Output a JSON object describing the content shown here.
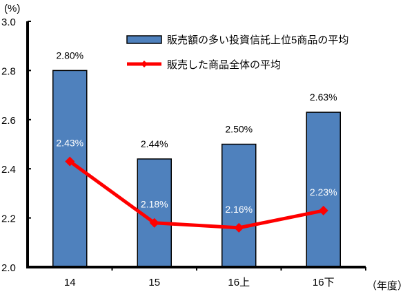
{
  "chart_data": {
    "type": "bar+line",
    "title": "",
    "unit_label": "(%)",
    "xlabel": "（年度）",
    "ylabel": "(%)",
    "categories": [
      "14",
      "15",
      "16上",
      "16下"
    ],
    "ylim": [
      2.0,
      3.0
    ],
    "yticks": [
      "2.0",
      "2.2",
      "2.4",
      "2.6",
      "2.8",
      "3.0"
    ],
    "grid": false,
    "legend_position": "top-right",
    "series": [
      {
        "name": "販売額の多い投資信託上位5商品の平均",
        "type": "bar",
        "color": "#4F81BD",
        "values": [
          2.8,
          2.44,
          2.5,
          2.63
        ],
        "labels": [
          "2.80%",
          "2.44%",
          "2.50%",
          "2.63%"
        ]
      },
      {
        "name": "販売した商品全体の平均",
        "type": "line",
        "color": "#FF0000",
        "marker": "diamond",
        "values": [
          2.43,
          2.18,
          2.16,
          2.23
        ],
        "labels": [
          "2.43%",
          "2.18%",
          "2.16%",
          "2.23%"
        ]
      }
    ]
  }
}
